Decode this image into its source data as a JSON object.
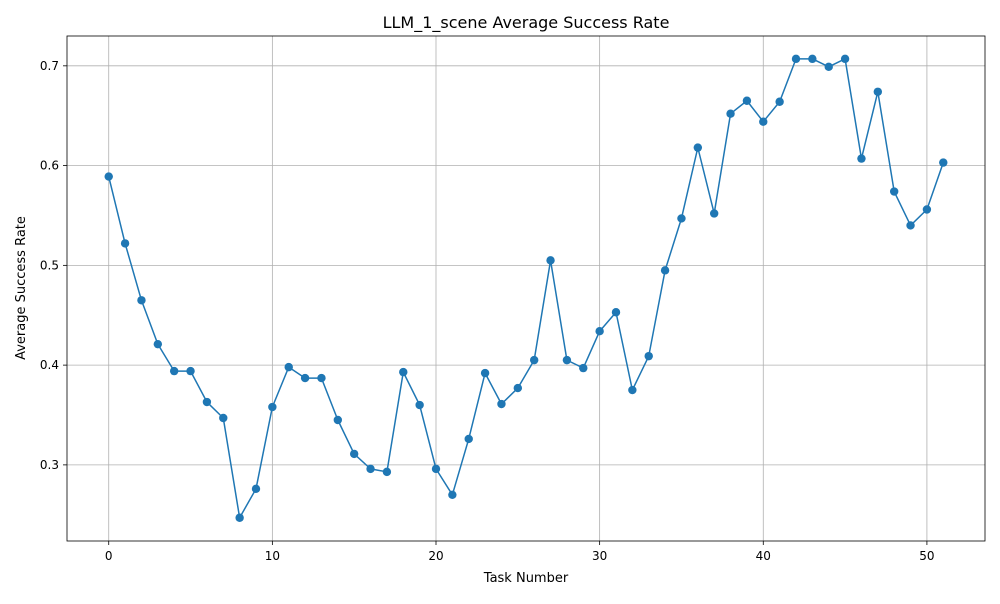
{
  "chart_data": {
    "type": "line",
    "title": "LLM_1_scene Average Success Rate",
    "xlabel": "Task Number",
    "ylabel": "Average Success Rate",
    "xlim": [
      -2.55,
      53.55
    ],
    "ylim": [
      0.2237,
      0.7299
    ],
    "xticks": [
      0,
      10,
      20,
      30,
      40,
      50
    ],
    "yticks": [
      0.3,
      0.4,
      0.5,
      0.6,
      0.7
    ],
    "xtick_labels": [
      "0",
      "10",
      "20",
      "30",
      "40",
      "50"
    ],
    "ytick_labels": [
      "0.3",
      "0.4",
      "0.5",
      "0.6",
      "0.7"
    ],
    "grid": true,
    "color": "#1f77b4",
    "marker": "circle",
    "x": [
      0,
      1,
      2,
      3,
      4,
      5,
      6,
      7,
      8,
      9,
      10,
      11,
      12,
      13,
      14,
      15,
      16,
      17,
      18,
      19,
      20,
      21,
      22,
      23,
      24,
      25,
      26,
      27,
      28,
      29,
      30,
      31,
      32,
      33,
      34,
      35,
      36,
      37,
      38,
      39,
      40,
      41,
      42,
      43,
      44,
      45,
      46,
      47,
      48,
      49,
      50,
      51
    ],
    "y": [
      0.589,
      0.522,
      0.465,
      0.421,
      0.394,
      0.394,
      0.363,
      0.347,
      0.247,
      0.276,
      0.358,
      0.398,
      0.387,
      0.387,
      0.345,
      0.311,
      0.296,
      0.293,
      0.393,
      0.36,
      0.296,
      0.27,
      0.326,
      0.392,
      0.361,
      0.377,
      0.405,
      0.505,
      0.405,
      0.397,
      0.434,
      0.453,
      0.375,
      0.409,
      0.495,
      0.547,
      0.618,
      0.552,
      0.652,
      0.665,
      0.644,
      0.664,
      0.707,
      0.707,
      0.699,
      0.707,
      0.607,
      0.674,
      0.574,
      0.54,
      0.556,
      0.603
    ]
  }
}
